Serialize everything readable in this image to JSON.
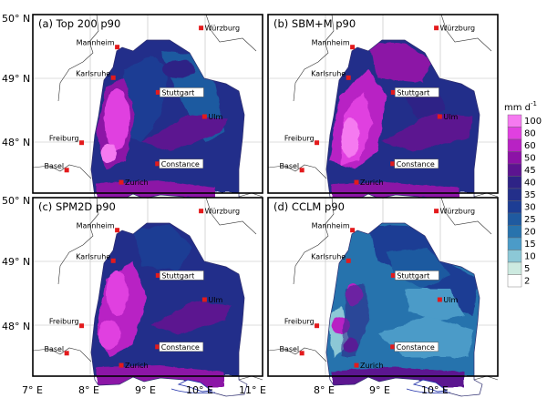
{
  "panels": [
    {
      "id": "a",
      "title": "(a) Top 200 p90",
      "scheme": "a"
    },
    {
      "id": "b",
      "title": "(b) SBM+M p90",
      "scheme": "b"
    },
    {
      "id": "c",
      "title": "(c) SPM2D p90",
      "scheme": "c"
    },
    {
      "id": "d",
      "title": "(d) CCLM p90",
      "scheme": "d"
    }
  ],
  "cities": [
    {
      "name": "Würzburg",
      "lon": 9.93,
      "lat": 49.79,
      "boxed": false
    },
    {
      "name": "Mannheim",
      "lon": 8.47,
      "lat": 49.49,
      "boxed": false
    },
    {
      "name": "Karlsruhe",
      "lon": 8.4,
      "lat": 49.01,
      "boxed": false
    },
    {
      "name": "Stuttgart",
      "lon": 9.18,
      "lat": 48.78,
      "boxed": true
    },
    {
      "name": "Ulm",
      "lon": 9.99,
      "lat": 48.4,
      "boxed": false
    },
    {
      "name": "Freiburg",
      "lon": 7.85,
      "lat": 47.99,
      "boxed": false
    },
    {
      "name": "Basel",
      "lon": 7.59,
      "lat": 47.56,
      "boxed": false
    },
    {
      "name": "Zurich",
      "lon": 8.54,
      "lat": 47.37,
      "boxed": false
    },
    {
      "name": "Constance",
      "lon": 9.17,
      "lat": 47.66,
      "boxed": true
    }
  ],
  "axes": {
    "lat_labels": [
      "50° N",
      "49° N",
      "48° N"
    ],
    "lat_values": [
      50,
      49,
      48
    ],
    "lon_labels": [
      "7° E",
      "8° E",
      "9° E",
      "10° E",
      "11° E"
    ],
    "lon_values": [
      7,
      8,
      9,
      10,
      11
    ],
    "lon_range": [
      7,
      11
    ],
    "lat_range": [
      47.2,
      50
    ]
  },
  "colorbar": {
    "unit": "mm d",
    "unit_exp": "-1",
    "levels": [
      "100",
      "80",
      "60",
      "50",
      "45",
      "40",
      "35",
      "30",
      "25",
      "20",
      "15",
      "10",
      "5",
      "2"
    ],
    "colors": [
      "#f57af0",
      "#e040e0",
      "#b822c4",
      "#8c12a6",
      "#5c1490",
      "#2e2386",
      "#232f8a",
      "#1d3d94",
      "#1f5aa0",
      "#2873ad",
      "#4b9bc8",
      "#8cc8d6",
      "#cdeae0",
      "#ffffff"
    ]
  }
}
